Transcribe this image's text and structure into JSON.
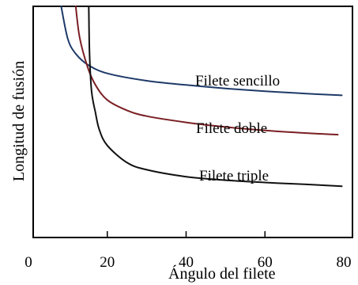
{
  "chart_data": {
    "type": "line",
    "title": "",
    "xlabel": "Ángulo del filete",
    "ylabel": "Longitud de fusión",
    "xlim": [
      0,
      80
    ],
    "ylim": [
      0,
      100
    ],
    "x_ticks": [
      0,
      20,
      40,
      60,
      80
    ],
    "y_ticks_shown": false,
    "grid": false,
    "legend": "none (series labeled inline)",
    "series": [
      {
        "name": "Filete sencillo",
        "color": "#1f3a68",
        "points": [
          [
            8.3,
            100
          ],
          [
            10,
            85.8
          ],
          [
            12,
            79.5
          ],
          [
            15,
            74.8
          ],
          [
            20,
            71.0
          ],
          [
            30,
            67.8
          ],
          [
            40,
            66.0
          ],
          [
            50,
            64.5
          ],
          [
            60,
            63.3
          ],
          [
            70,
            62.3
          ],
          [
            79.5,
            61.5
          ]
        ]
      },
      {
        "name": "Filete doble",
        "color": "#7a1f24",
        "points": [
          [
            12,
            100
          ],
          [
            13,
            86.5
          ],
          [
            15,
            73.8
          ],
          [
            17,
            66.0
          ],
          [
            20,
            59.5
          ],
          [
            25,
            55.0
          ],
          [
            30,
            52.5
          ],
          [
            40,
            49.8
          ],
          [
            50,
            47.8
          ],
          [
            60,
            46.3
          ],
          [
            70,
            45.2
          ],
          [
            78.5,
            44.5
          ]
        ]
      },
      {
        "name": "Filete triple",
        "color": "#111111",
        "points": [
          [
            15.3,
            100
          ],
          [
            15.5,
            79.5
          ],
          [
            16,
            63.5
          ],
          [
            17,
            54.0
          ],
          [
            18,
            46.5
          ],
          [
            20,
            39.8
          ],
          [
            25,
            32.4
          ],
          [
            30,
            29.3
          ],
          [
            40,
            26.3
          ],
          [
            50,
            24.8
          ],
          [
            60,
            23.8
          ],
          [
            70,
            23.0
          ],
          [
            79.5,
            22.2
          ]
        ]
      }
    ]
  }
}
